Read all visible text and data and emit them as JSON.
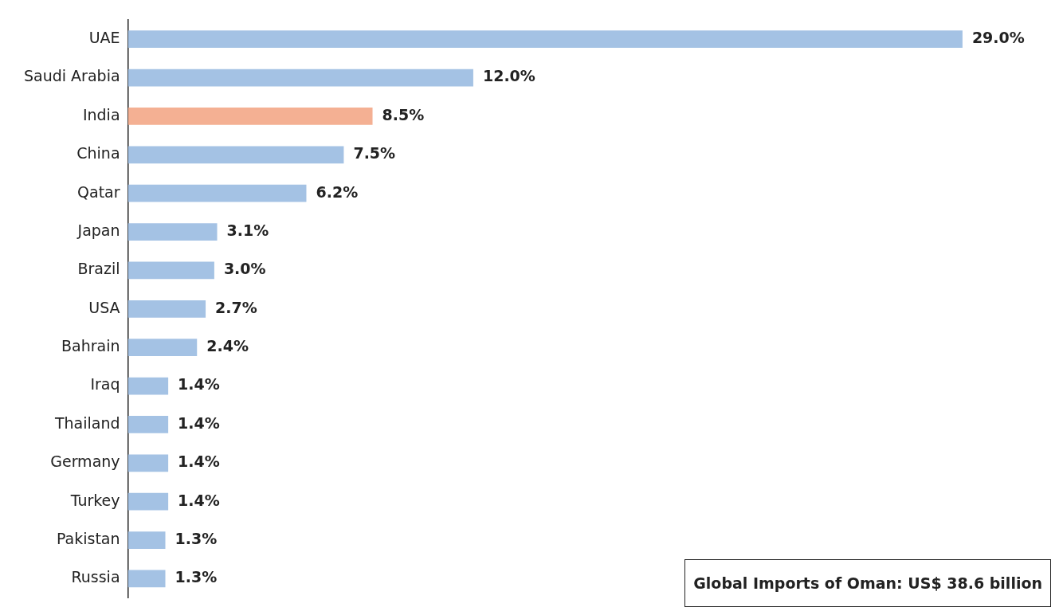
{
  "chart_data": {
    "type": "bar",
    "orientation": "horizontal",
    "categories": [
      "UAE",
      "Saudi Arabia",
      "India",
      "China",
      "Qatar",
      "Japan",
      "Brazil",
      "USA",
      "Bahrain",
      "Iraq",
      "Thailand",
      "Germany",
      "Turkey",
      "Pakistan",
      "Russia"
    ],
    "values": [
      29.0,
      12.0,
      8.5,
      7.5,
      6.2,
      3.1,
      3.0,
      2.7,
      2.4,
      1.4,
      1.4,
      1.4,
      1.4,
      1.3,
      1.3
    ],
    "value_labels": [
      "29.0%",
      "12.0%",
      "8.5%",
      "7.5%",
      "6.2%",
      "3.1%",
      "3.0%",
      "2.7%",
      "2.4%",
      "1.4%",
      "1.4%",
      "1.4%",
      "1.4%",
      "1.3%",
      "1.3%"
    ],
    "colors": [
      "#a4c2e4",
      "#a4c2e4",
      "#f4b093",
      "#a4c2e4",
      "#a4c2e4",
      "#a4c2e4",
      "#a4c2e4",
      "#a4c2e4",
      "#a4c2e4",
      "#a4c2e4",
      "#a4c2e4",
      "#a4c2e4",
      "#a4c2e4",
      "#a4c2e4",
      "#a4c2e4"
    ],
    "annotations": [
      "Global Imports of Oman: US$ 38.6 billion"
    ],
    "legend": false,
    "tick_labels": "y"
  }
}
